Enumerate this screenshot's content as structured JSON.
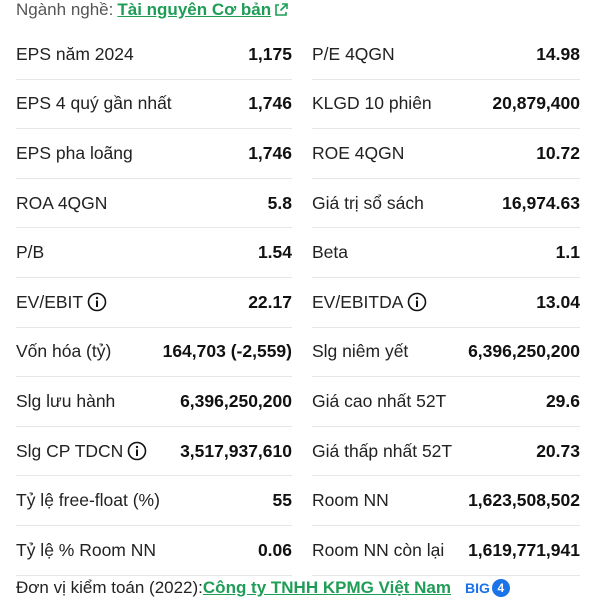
{
  "industry": {
    "label": "Ngành nghề:",
    "value": "Tài nguyên Cơ bản",
    "link_icon": "external-link-icon"
  },
  "rows": [
    {
      "left": {
        "label": "EPS năm 2024",
        "value": "1,175"
      },
      "right": {
        "label": "P/E 4QGN",
        "value": "14.98"
      }
    },
    {
      "left": {
        "label": "EPS 4 quý gần nhất",
        "value": "1,746"
      },
      "right": {
        "label": "KLGD 10 phiên",
        "value": "20,879,400"
      }
    },
    {
      "left": {
        "label": "EPS pha loãng",
        "value": "1,746"
      },
      "right": {
        "label": "ROE 4QGN",
        "value": "10.72"
      }
    },
    {
      "left": {
        "label": "ROA 4QGN",
        "value": "5.8"
      },
      "right": {
        "label": "Giá trị sổ sách",
        "value": "16,974.63"
      }
    },
    {
      "left": {
        "label": "P/B",
        "value": "1.54"
      },
      "right": {
        "label": "Beta",
        "value": "1.1"
      }
    },
    {
      "left": {
        "label": "EV/EBIT",
        "value": "22.17",
        "info": true
      },
      "right": {
        "label": "EV/EBITDA",
        "value": "13.04",
        "info": true
      }
    },
    {
      "left": {
        "label": "Vốn hóa (tỷ)",
        "value": "164,703 (-2,559)"
      },
      "right": {
        "label": "Slg niêm yết",
        "value": "6,396,250,200"
      }
    },
    {
      "left": {
        "label": "Slg lưu hành",
        "value": "6,396,250,200"
      },
      "right": {
        "label": "Giá cao nhất 52T",
        "value": "29.6"
      }
    },
    {
      "left": {
        "label": "Slg CP TDCN",
        "value": "3,517,937,610",
        "info": true
      },
      "right": {
        "label": "Giá thấp nhất 52T",
        "value": "20.73"
      }
    },
    {
      "left": {
        "label": "Tỷ lệ free-float (%)",
        "value": "55"
      },
      "right": {
        "label": "Room NN",
        "value": "1,623,508,502"
      }
    },
    {
      "left": {
        "label": "Tỷ lệ % Room NN",
        "value": "0.06"
      },
      "right": {
        "label": "Room NN còn lại",
        "value": "1,619,771,941"
      }
    }
  ],
  "footer": {
    "label": "Đơn vị kiểm toán (2022):",
    "auditor": "Công ty TNHH KPMG Việt Nam",
    "badge_text": "BIG",
    "badge_number": "4"
  },
  "colors": {
    "link": "#1f9d57",
    "badge": "#1a73e8"
  }
}
